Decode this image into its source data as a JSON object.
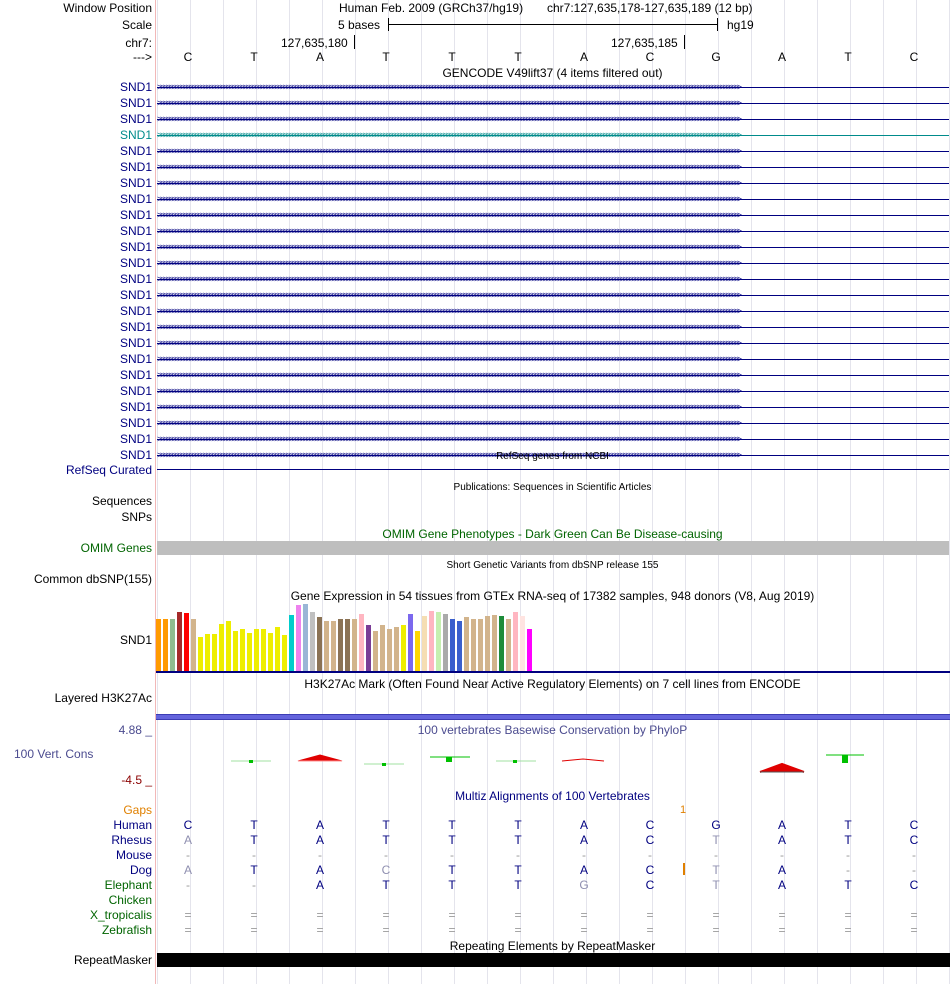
{
  "header": {
    "window_position_label": "Window Position",
    "assembly": "Human Feb. 2009 (GRCh37/hg19)",
    "position": "chr7:127,635,178-127,635,189 (12 bp)",
    "scale_label": "Scale",
    "scale_text": "5 bases",
    "scale_db": "hg19",
    "chrom_label": "chr7:",
    "pos_left": "127,635,180",
    "pos_right": "127,635,185",
    "strand_label": "--->",
    "bases": [
      "C",
      "T",
      "A",
      "T",
      "T",
      "T",
      "A",
      "C",
      "G",
      "A",
      "T",
      "C"
    ]
  },
  "gencode": {
    "title": "GENCODE V49lift37 (4 items filtered out)",
    "gene_name": "SND1",
    "rows": [
      "SND1",
      "SND1",
      "SND1",
      "SND1",
      "SND1",
      "SND1",
      "SND1",
      "SND1",
      "SND1",
      "SND1",
      "SND1",
      "SND1",
      "SND1",
      "SND1",
      "SND1",
      "SND1",
      "SND1",
      "SND1",
      "SND1",
      "SND1",
      "SND1",
      "SND1",
      "SND1",
      "SND1"
    ],
    "highlight_index": 3,
    "arrows": ">>>>>>>>>>>>>>>>>>>>>>>>>>>>>>>>>>>>>>>>>>>>>>>>>>>>>>>>>>>>>>>>>>>>>>>>>>>>>>>>>>>>>>>>>>>>>>>>>>>>>>>>>>>>>>>>>>>>>>>>>>>>>>>>>>>>>>>>>>>>>>>>>>>>>>>>>>>>>>>>>>>>>>>>>>>>>>>>>>>>>>>>>>>>>>>>>>>>>>>>>>>>"
  },
  "refseq": {
    "title": "RefSeq genes from NCBI",
    "label": "RefSeq Curated"
  },
  "publications": {
    "title": "Publications: Sequences in Scientific Articles",
    "label_line1": "Sequences",
    "label_line2": "SNPs"
  },
  "omim": {
    "title": "OMIM Gene Phenotypes - Dark Green Can Be Disease-causing",
    "label": "OMIM Genes"
  },
  "dbsnp": {
    "title": "Short Genetic Variants from dbSNP release 155",
    "label": "Common dbSNP(155)"
  },
  "gtex": {
    "title": "Gene Expression in 54 tissues from GTEx RNA-seq of 17382 samples, 948 donors (V8, Aug 2019)",
    "label": "SND1",
    "levels": [
      0.78,
      0.78,
      0.78,
      0.88,
      0.86,
      0.78,
      0.5,
      0.55,
      0.55,
      0.7,
      0.74,
      0.6,
      0.62,
      0.56,
      0.63,
      0.62,
      0.56,
      0.65,
      0.54,
      0.84,
      0.99,
      1.0,
      0.88,
      0.8,
      0.75,
      0.75,
      0.78,
      0.78,
      0.78,
      0.85,
      0.68,
      0.6,
      0.68,
      0.62,
      0.65,
      0.68,
      0.85,
      0.6,
      0.82,
      0.9,
      0.88,
      0.85,
      0.78,
      0.75,
      0.8,
      0.78,
      0.78,
      0.82,
      0.84,
      0.82,
      0.78,
      0.88,
      0.82,
      0.63
    ],
    "colors": [
      "#ff9a00",
      "#ff9a00",
      "#8fbc8f",
      "#a52a2a",
      "#ff0000",
      "#d2b48c",
      "#eeee00",
      "#eeee00",
      "#eeee00",
      "#eeee00",
      "#eeee00",
      "#eeee00",
      "#eeee00",
      "#eeee00",
      "#eeee00",
      "#eeee00",
      "#eeee00",
      "#eeee00",
      "#eeee00",
      "#00cccc",
      "#ee82ee",
      "#9ab6d6",
      "#c0c0c0",
      "#8b7355",
      "#d2b48c",
      "#d2b48c",
      "#8b7355",
      "#8b7355",
      "#d2b48c",
      "#ffb6c1",
      "#7a3c96",
      "#d2b48c",
      "#d2b48c",
      "#d2b48c",
      "#d2b48c",
      "#eeee00",
      "#7b68ee",
      "#ffd700",
      "#f5deb3",
      "#ffb6c1",
      "#c6f0b0",
      "#aaaaaa",
      "#3a5fcd",
      "#3a5fcd",
      "#d2b48c",
      "#d2b48c",
      "#d2b48c",
      "#d2b48c",
      "#d2b48c",
      "#1e8c3a",
      "#d2b48c",
      "#ffb6c1",
      "#ffe4e1",
      "#ff00ff"
    ]
  },
  "h3k27ac": {
    "title": "H3K27Ac Mark (Often Found Near Active Regulatory Elements) on 7 cell lines from ENCODE",
    "label": "Layered H3K27Ac"
  },
  "phylop": {
    "title": "100 vertebrates Basewise Conservation by PhyloP",
    "label": "100 Vert. Cons",
    "max_label": "4.88 _",
    "min_label": "-4.5 _"
  },
  "multiz": {
    "title": "Multiz Alignments of 100 Vertebrates",
    "gaps_label": "Gaps",
    "gap_count": "1",
    "species": [
      {
        "name": "Human",
        "seq": [
          "C",
          "T",
          "A",
          "T",
          "T",
          "T",
          "A",
          "C",
          "G",
          "A",
          "T",
          "C"
        ]
      },
      {
        "name": "Rhesus",
        "seq": [
          "A",
          "T",
          "A",
          "T",
          "T",
          "T",
          "A",
          "C",
          "T",
          "A",
          "T",
          "C"
        ]
      },
      {
        "name": "Mouse",
        "seq": [
          "-",
          "-",
          "-",
          "-",
          "-",
          "-",
          "-",
          "-",
          "-",
          "-",
          "-",
          "-"
        ]
      },
      {
        "name": "Dog",
        "seq": [
          "A",
          "T",
          "A",
          "C",
          "T",
          "T",
          "A",
          "C",
          "T",
          "A",
          "-",
          "-"
        ]
      },
      {
        "name": "Elephant",
        "seq": [
          "-",
          "-",
          "A",
          "T",
          "T",
          "T",
          "G",
          "C",
          "T",
          "A",
          "T",
          "C"
        ]
      },
      {
        "name": "Chicken",
        "seq": [
          "",
          "",
          "",
          "",
          "",
          "",
          "",
          "",
          "",
          "",
          "",
          ""
        ]
      },
      {
        "name": "X_tropicalis",
        "seq": [
          "=",
          "=",
          "=",
          "=",
          "=",
          "=",
          "=",
          "=",
          "=",
          "=",
          "=",
          "="
        ]
      },
      {
        "name": "Zebrafish",
        "seq": [
          "=",
          "=",
          "=",
          "=",
          "=",
          "=",
          "=",
          "=",
          "=",
          "=",
          "=",
          "="
        ]
      }
    ]
  },
  "repeatmasker": {
    "title": "Repeating Elements by RepeatMasker",
    "label": "RepeatMasker"
  },
  "colors": {
    "navy": "#000080",
    "highlight": "#008B8B",
    "omim_green": "#006400",
    "gaps_orange": "#E08000",
    "phylop_title": "#4B4B8F"
  }
}
